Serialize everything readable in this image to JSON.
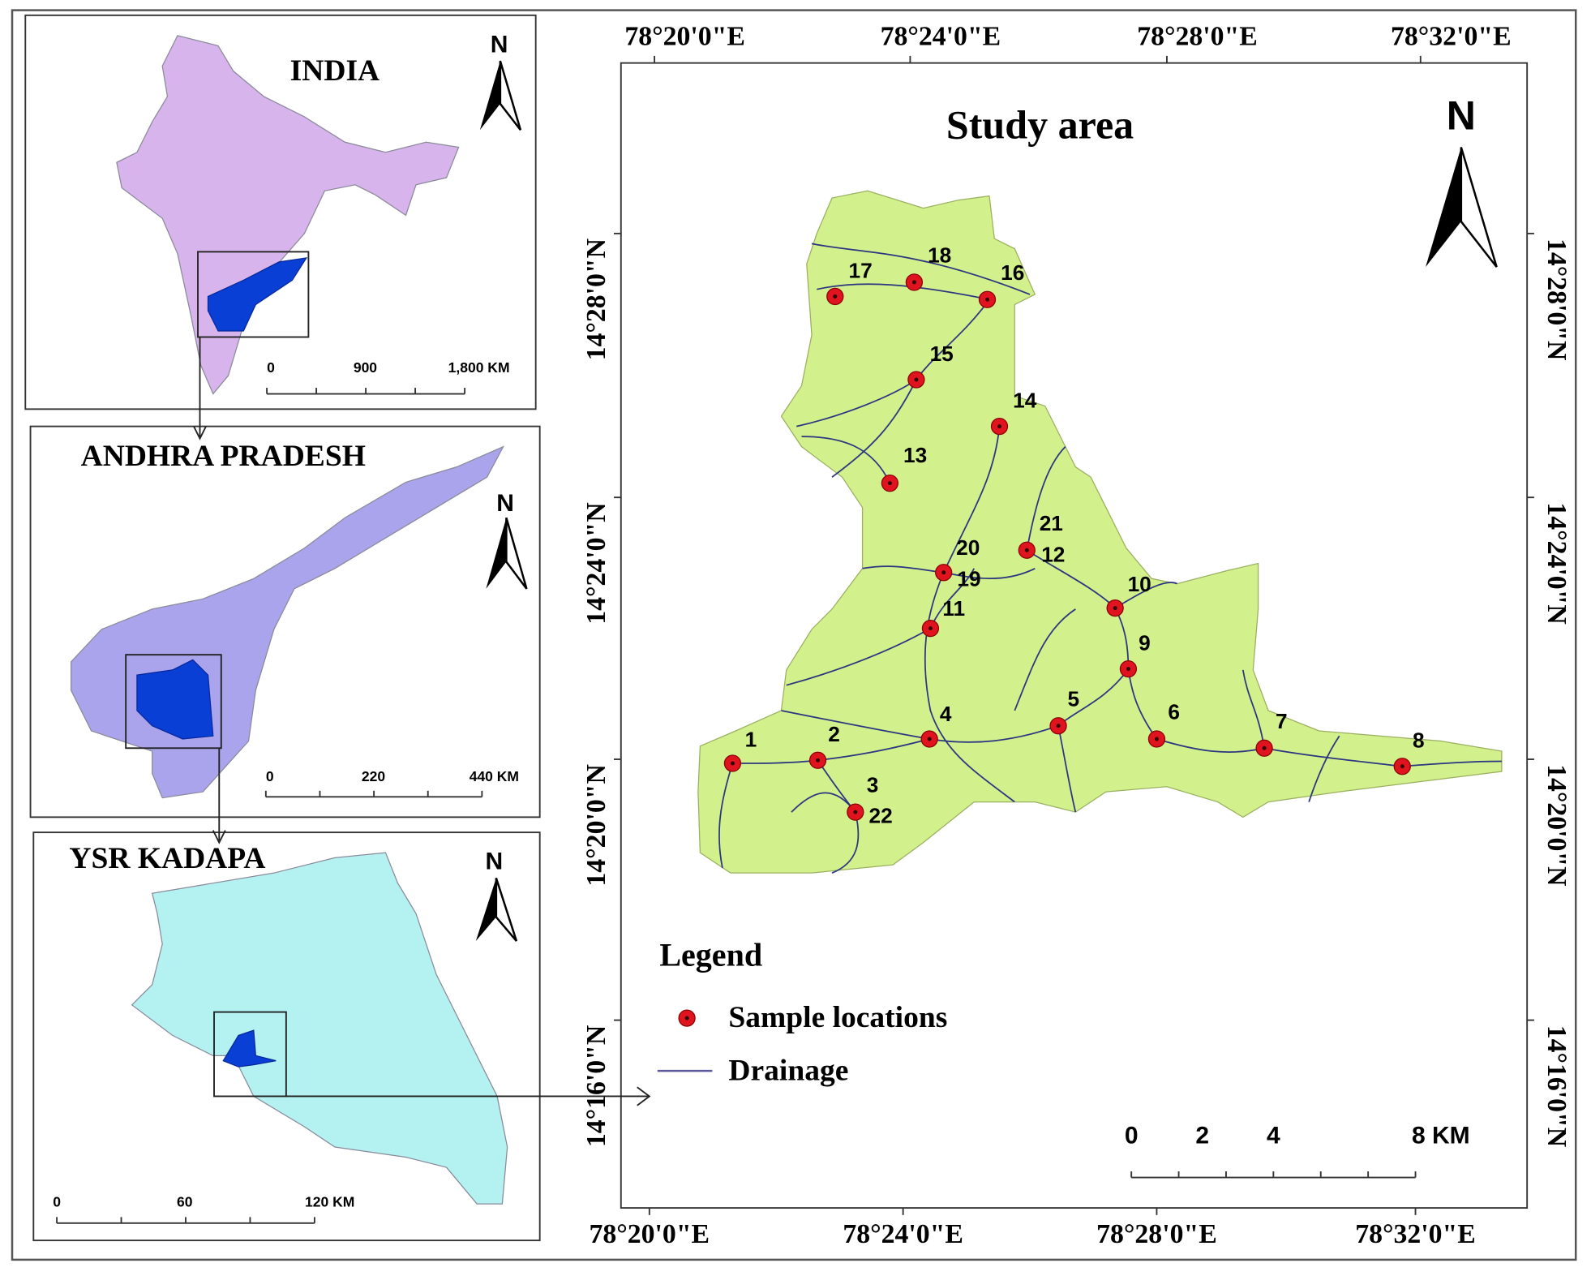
{
  "insets": [
    {
      "title": "INDIA",
      "north": "N",
      "scale": [
        "0",
        "900",
        "1,800 KM"
      ]
    },
    {
      "title": "ANDHRA PRADESH",
      "north": "N",
      "scale": [
        "0",
        "220",
        "440 KM"
      ]
    },
    {
      "title": "YSR KADAPA",
      "north": "N",
      "scale": [
        "0",
        "60",
        "120 KM"
      ]
    }
  ],
  "study_area": {
    "title": "Study area",
    "north": "N",
    "top_labels": [
      "78°20'0\"E",
      "78°24'0\"E",
      "78°28'0\"E",
      "78°32'0\"E"
    ],
    "bottom_labels": [
      "78°20'0\"E",
      "78°24'0\"E",
      "78°28'0\"E",
      "78°32'0\"E"
    ],
    "left_labels": [
      "14°28'0\"N",
      "14°24'0\"N",
      "14°20'0\"N",
      "14°16'0\"N"
    ],
    "right_labels": [
      "14°28'0\"N",
      "14°24'0\"N",
      "14°20'0\"N",
      "14°16'0\"N"
    ],
    "sample_labels": [
      "1",
      "2",
      "3",
      "4",
      "5",
      "6",
      "7",
      "8",
      "9",
      "10",
      "11",
      "12",
      "13",
      "14",
      "15",
      "16",
      "17",
      "18",
      "19",
      "20",
      "21",
      "22"
    ],
    "legend": {
      "title": "Legend",
      "items": [
        "Sample locations",
        "Drainage"
      ]
    },
    "scale": [
      "0",
      "2",
      "4",
      "8 KM"
    ]
  }
}
